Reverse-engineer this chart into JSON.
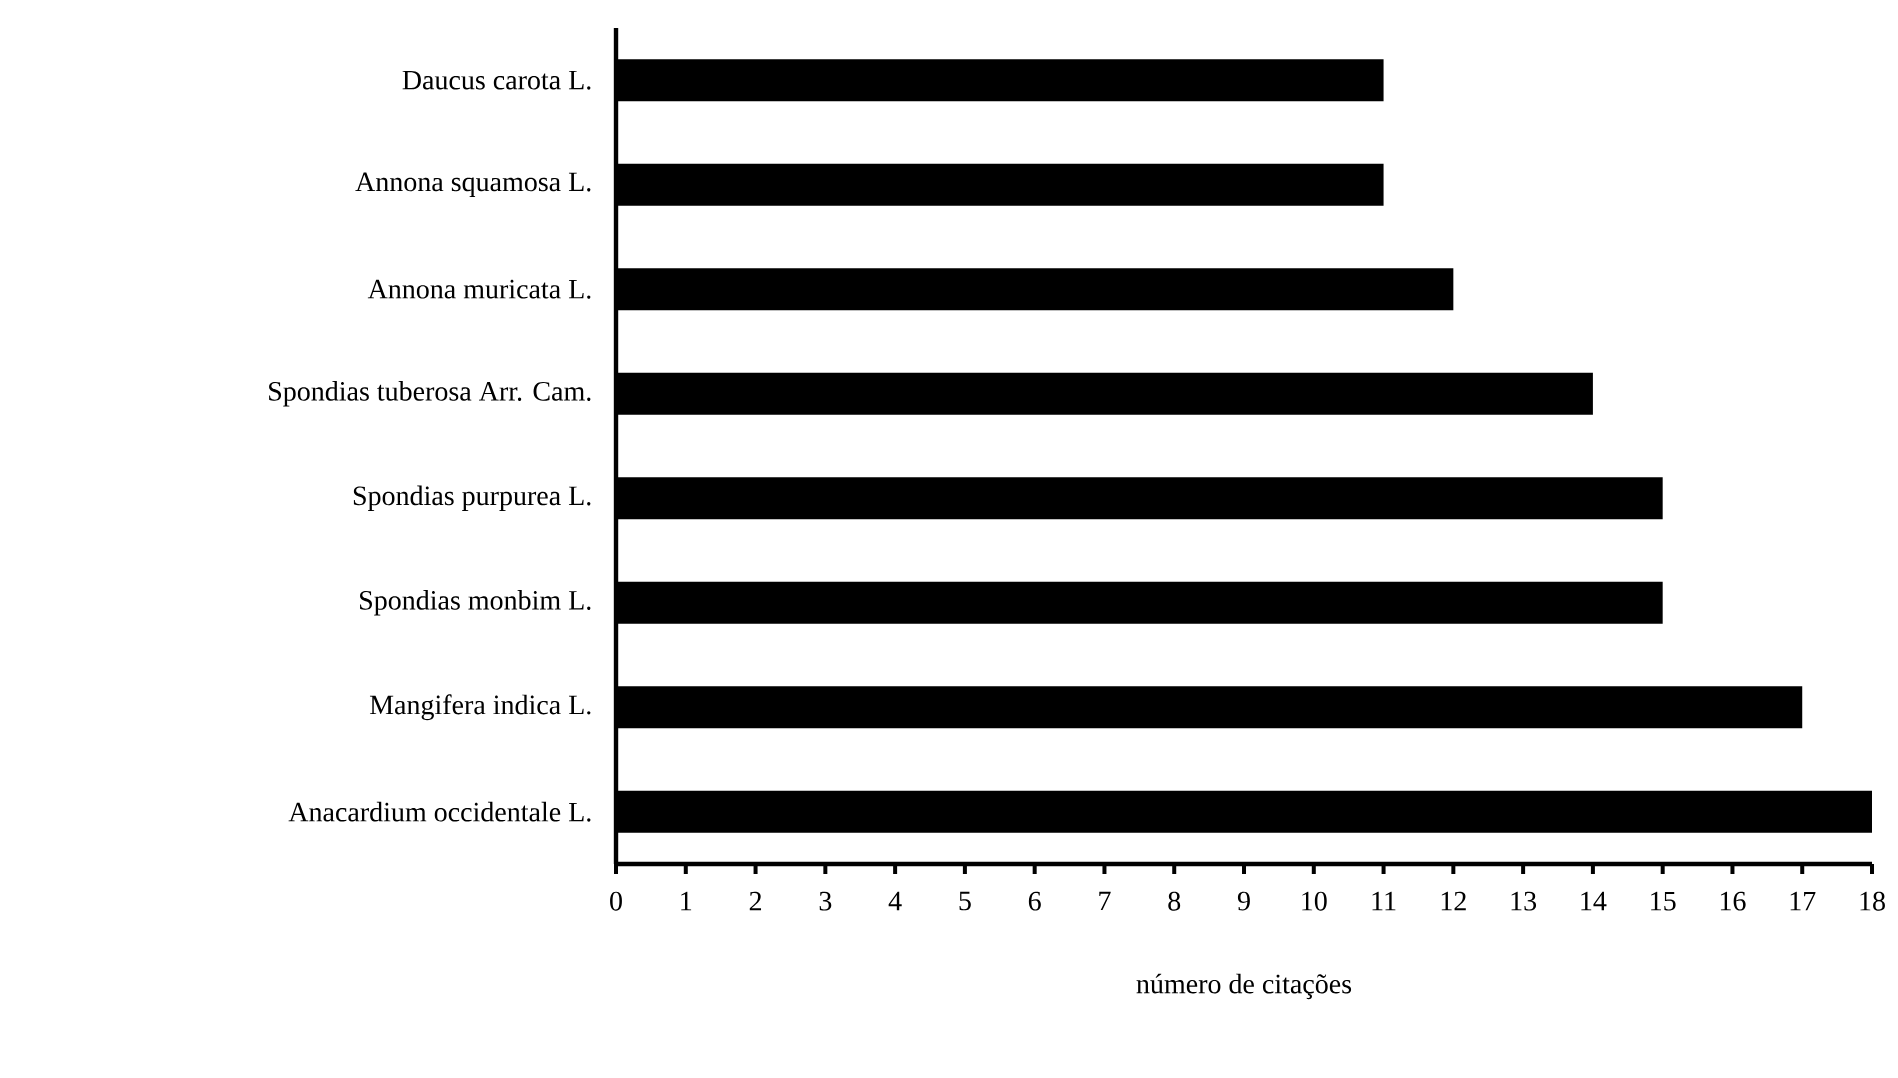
{
  "chart_data": {
    "type": "bar",
    "orientation": "horizontal",
    "xlabel": "número de citações",
    "categories": [
      "Daucus carota L.",
      "Annona squamosa L.",
      "Annona muricata L.",
      "Spondias tuberosa Arr. Cam.",
      "Spondias purpurea L.",
      "Spondias monbim L.",
      "Mangifera indica L.",
      "Anacardium occidentale L."
    ],
    "values": [
      11,
      11,
      12,
      14,
      15,
      15,
      17,
      18
    ],
    "color": "#000000",
    "xlim": [
      0,
      18
    ],
    "xticks": [
      0,
      1,
      2,
      3,
      4,
      5,
      6,
      7,
      8,
      9,
      10,
      11,
      12,
      13,
      14,
      15,
      16,
      17,
      18
    ],
    "grid": false
  }
}
